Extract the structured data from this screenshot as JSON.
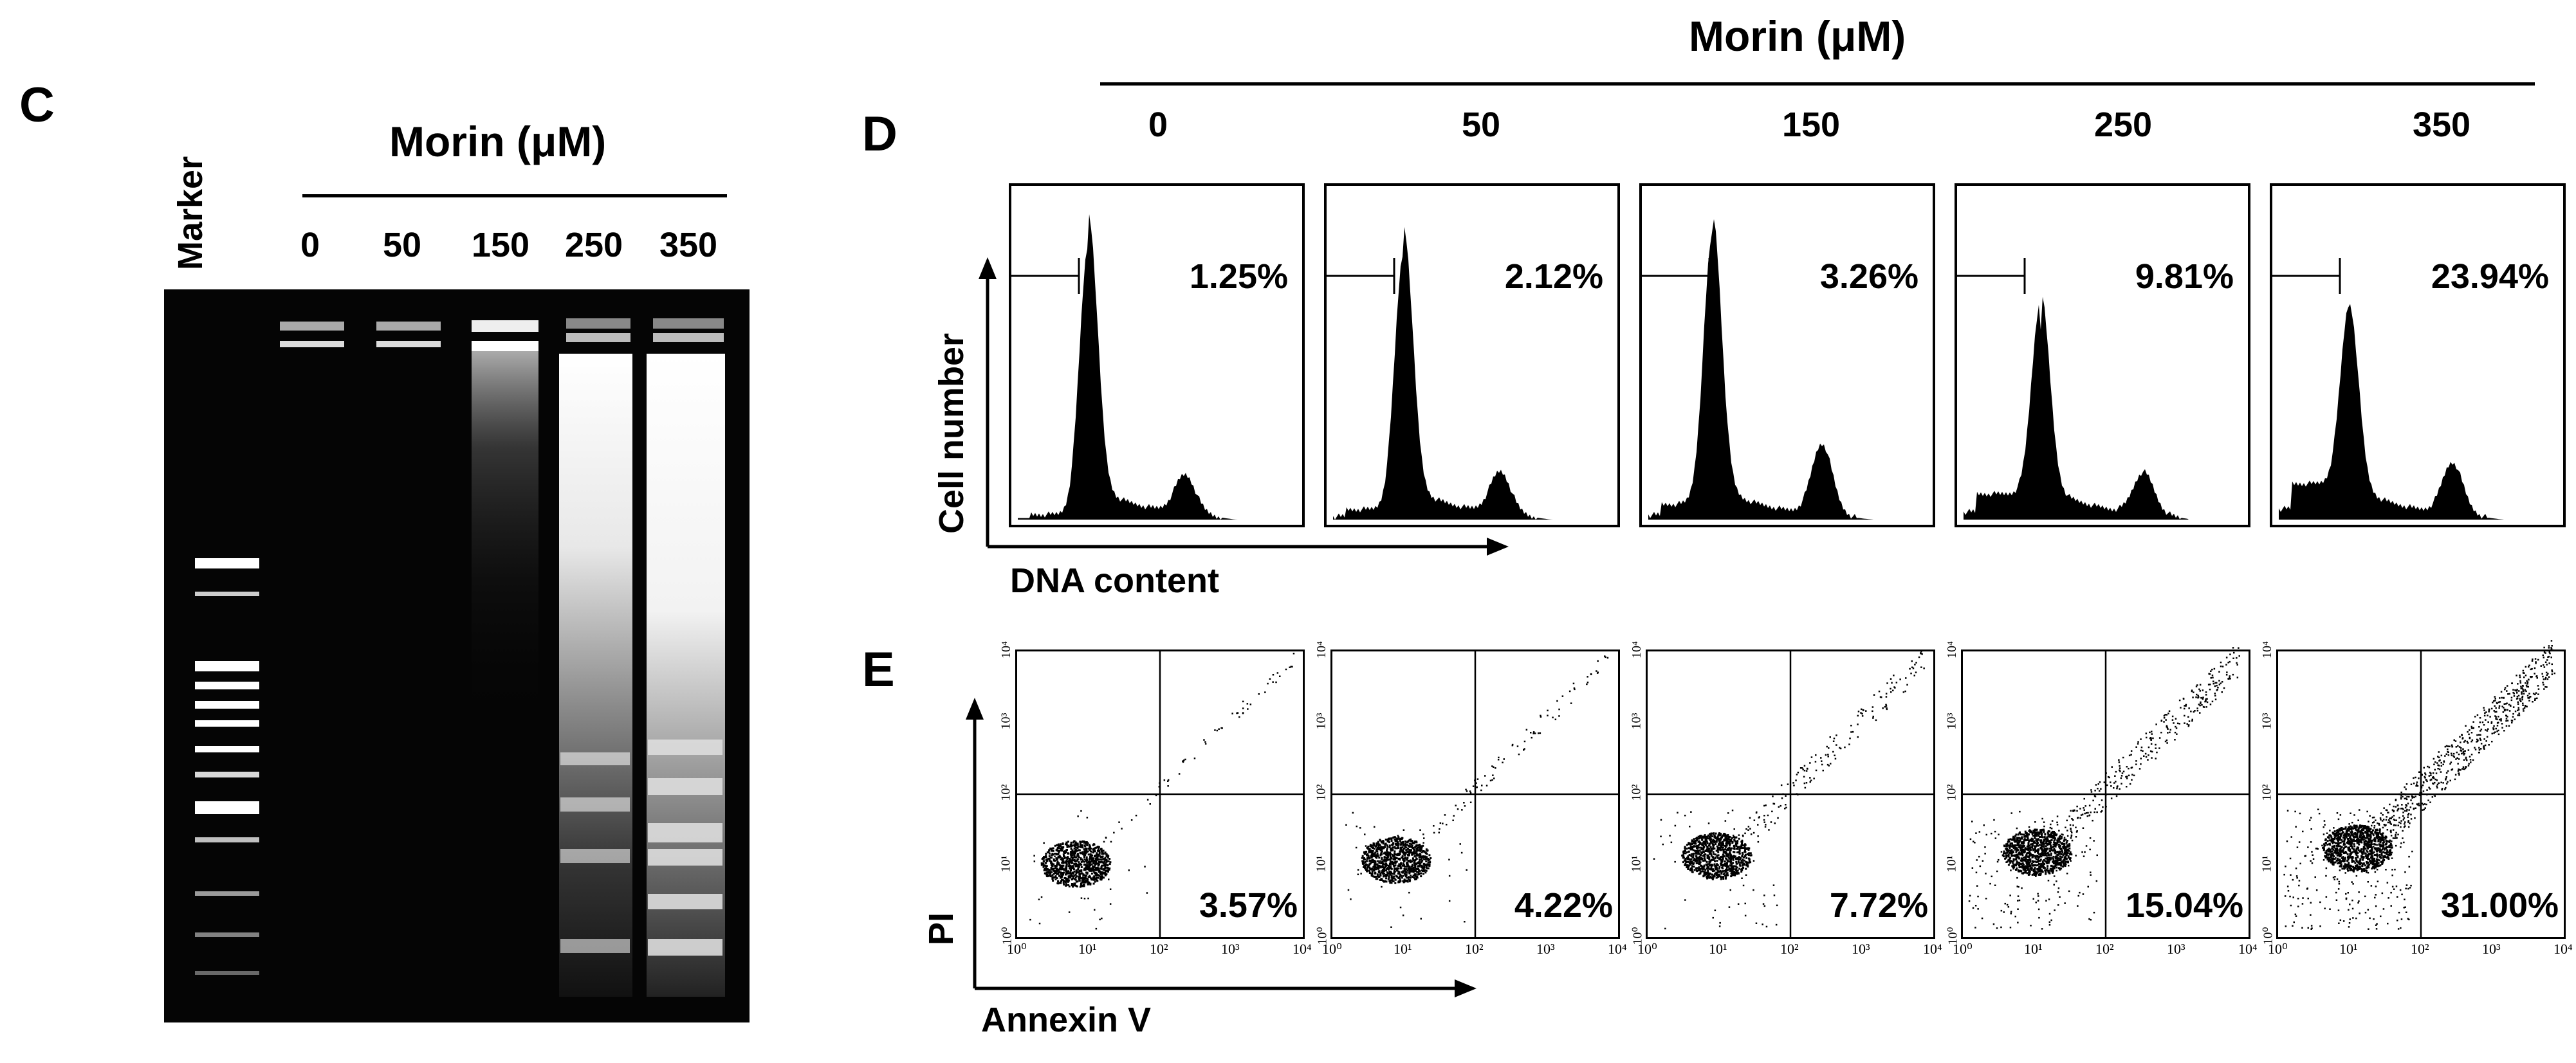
{
  "panel_c": {
    "letter": "C",
    "header": "Morin (μM)",
    "marker_label": "Marker",
    "doses": [
      "0",
      "50",
      "150",
      "250",
      "350"
    ]
  },
  "panel_d": {
    "letter": "D",
    "header": "Morin (μM)",
    "doses": [
      "0",
      "50",
      "150",
      "250",
      "350"
    ],
    "percentages": [
      "1.25%",
      "2.12%",
      "3.26%",
      "9.81%",
      "23.94%"
    ],
    "y_label": "Cell number",
    "x_label": "DNA content"
  },
  "panel_e": {
    "letter": "E",
    "percentages": [
      "3.57%",
      "4.22%",
      "7.72%",
      "15.04%",
      "31.00%"
    ],
    "y_label": "PI",
    "x_label": "Annexin V",
    "x_ticks": [
      "10⁰",
      "10¹",
      "10²",
      "10³",
      "10⁴"
    ],
    "y_ticks": [
      "10⁰",
      "10¹",
      "10²",
      "10³",
      "10⁴"
    ]
  }
}
